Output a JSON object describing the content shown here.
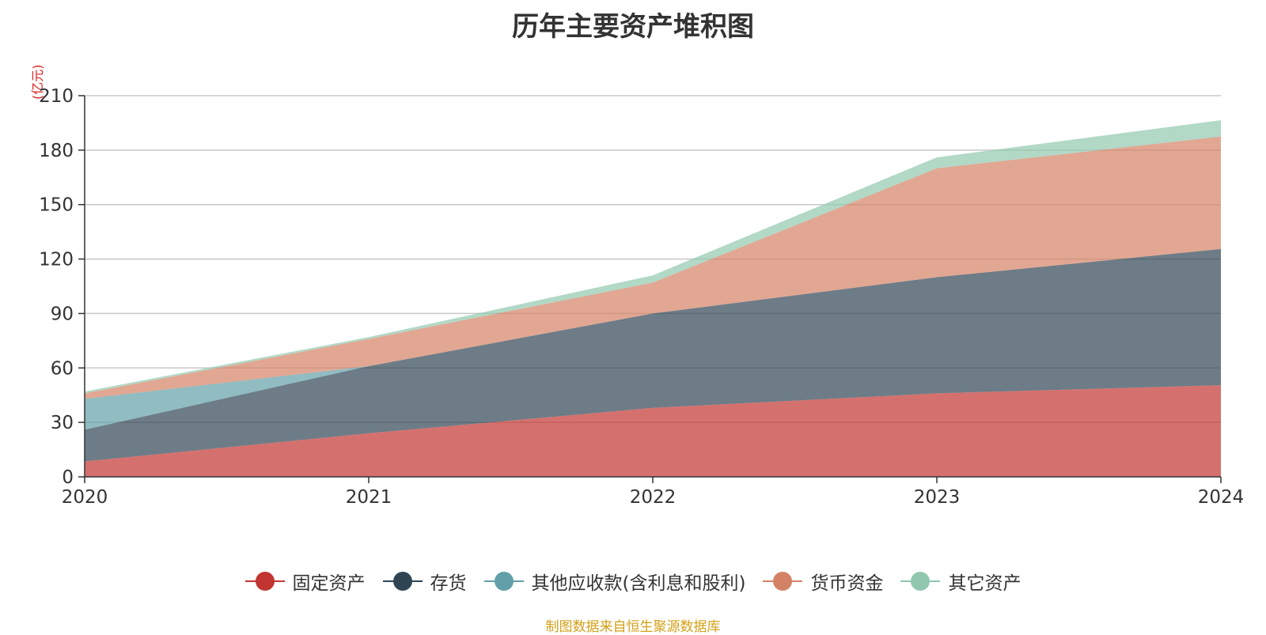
{
  "title": "历年主要资产堆积图",
  "source": "制图数据来自恒生聚源数据库",
  "chart_data": {
    "type": "area",
    "stacked": true,
    "title": "历年主要资产堆积图",
    "ylabel": "(亿元)",
    "xlabel": "",
    "x": [
      "2020",
      "2021",
      "2022",
      "2023",
      "2024"
    ],
    "ylim": [
      0,
      210
    ],
    "yticks": [
      0,
      30,
      60,
      90,
      120,
      150,
      180,
      210
    ],
    "grid": true,
    "legend_position": "bottom",
    "series": [
      {
        "name": "固定资产",
        "color": "#c23531",
        "values": [
          8.5,
          24,
          38,
          46,
          50.5
        ]
      },
      {
        "name": "存货",
        "color": "#2f4554",
        "values": [
          17.5,
          37,
          52,
          64,
          75
        ]
      },
      {
        "name": "其他应收款(含利息和股利)",
        "color": "#61a0a8",
        "values": [
          17,
          0,
          0,
          0,
          0
        ]
      },
      {
        "name": "货币资金",
        "color": "#d48265",
        "values": [
          3,
          15,
          17,
          60,
          62
        ]
      },
      {
        "name": "其它资产",
        "color": "#91c7ae",
        "values": [
          1,
          1,
          4,
          6,
          9
        ]
      }
    ]
  }
}
